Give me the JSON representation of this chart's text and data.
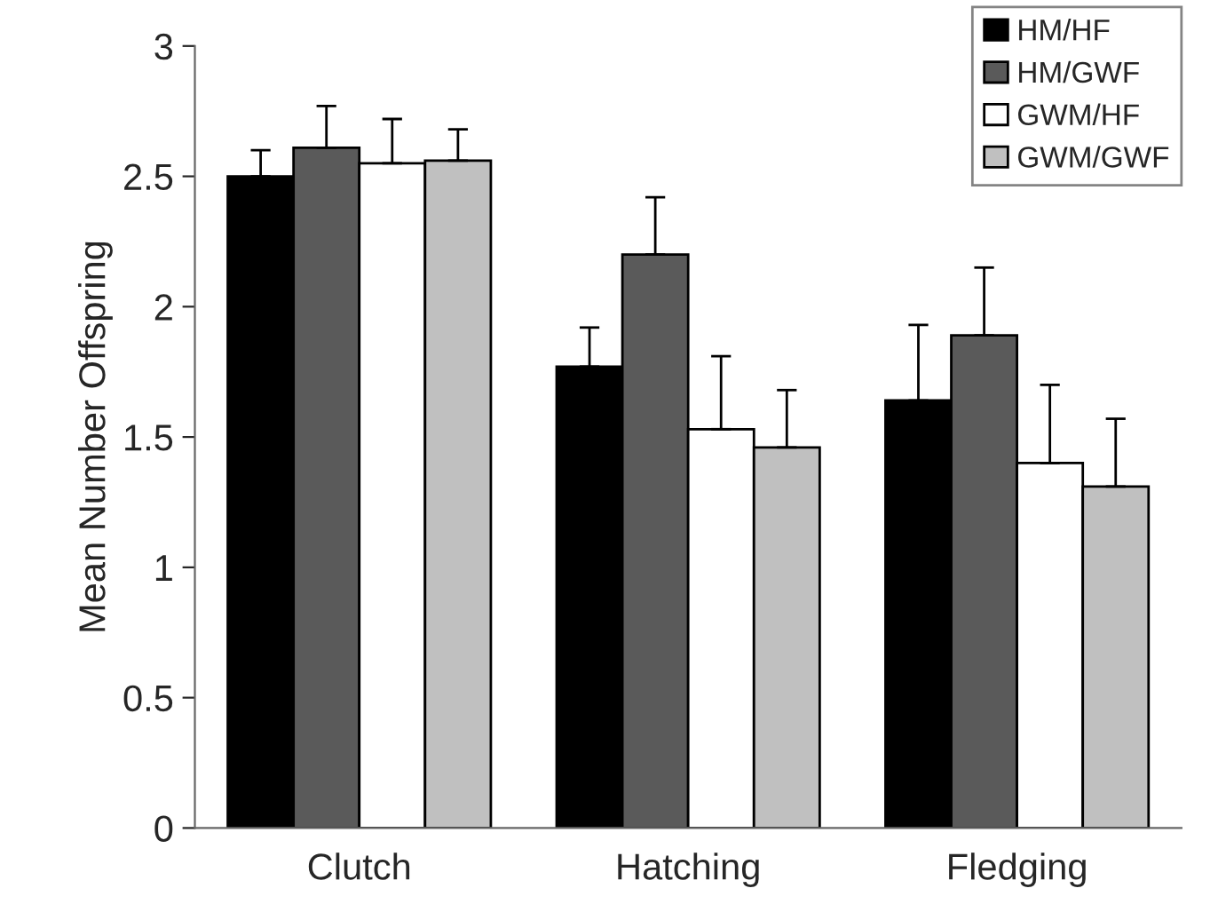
{
  "chart_data": {
    "type": "bar",
    "ylabel": "Mean Number Offspring",
    "categories": [
      "Clutch",
      "Hatching",
      "Fledging"
    ],
    "series": [
      {
        "name": "HM/HF",
        "color": "#000000",
        "values": [
          2.5,
          1.77,
          1.64
        ],
        "errors": [
          [
            2.5,
            2.6
          ],
          [
            1.77,
            1.92
          ],
          [
            1.64,
            1.93
          ]
        ]
      },
      {
        "name": "HM/GWF",
        "color": "#5a5a5a",
        "values": [
          2.61,
          2.2,
          1.89
        ],
        "errors": [
          [
            2.61,
            2.77
          ],
          [
            2.2,
            2.42
          ],
          [
            1.89,
            2.15
          ]
        ]
      },
      {
        "name": "GWM/HF",
        "color": "#ffffff",
        "values": [
          2.55,
          1.53,
          1.4
        ],
        "errors": [
          [
            2.55,
            2.72
          ],
          [
            1.53,
            1.81
          ],
          [
            1.4,
            1.7
          ]
        ]
      },
      {
        "name": "GWM/GWF",
        "color": "#c0c0c0",
        "values": [
          2.56,
          1.46,
          1.31
        ],
        "errors": [
          [
            2.56,
            2.68
          ],
          [
            1.46,
            1.68
          ],
          [
            1.31,
            1.57
          ]
        ]
      }
    ],
    "ylim": [
      0,
      3
    ],
    "yticks": [
      0,
      0.5,
      1,
      1.5,
      2,
      2.5,
      3
    ],
    "grid": false,
    "legend": "top right"
  }
}
